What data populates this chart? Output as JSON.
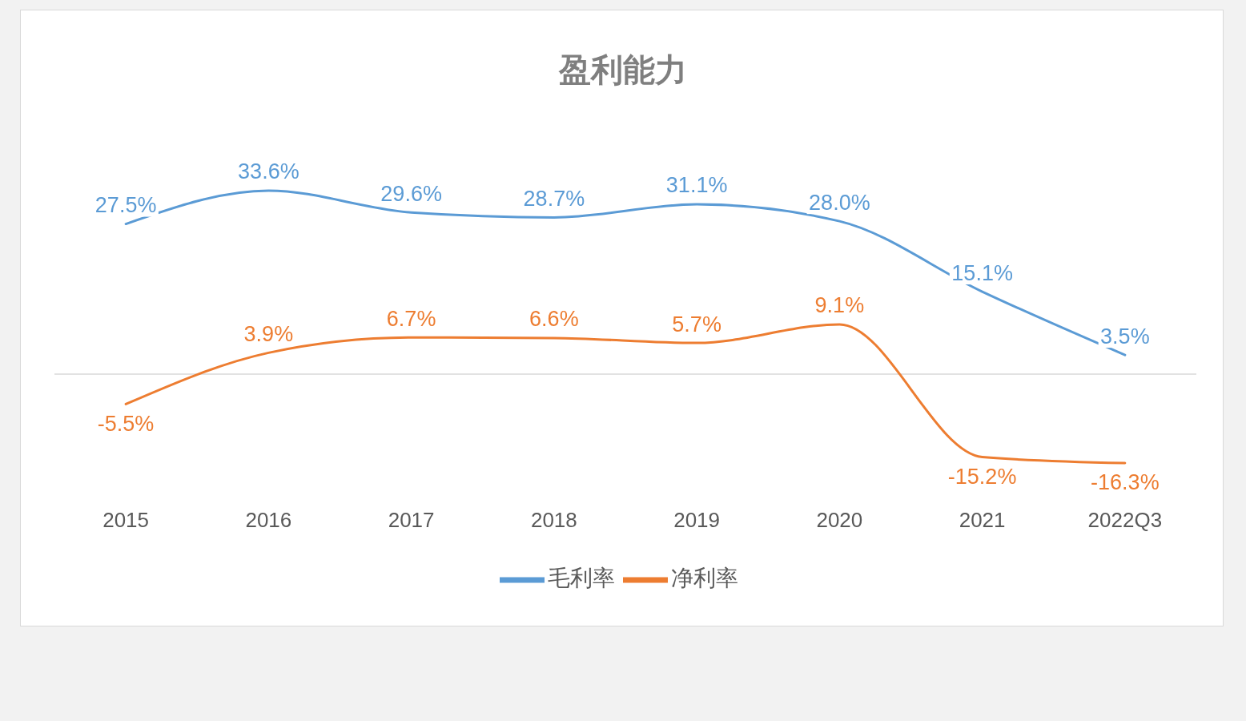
{
  "chart_data": {
    "type": "line",
    "title": "盈利能力",
    "categories": [
      "2015",
      "2016",
      "2017",
      "2018",
      "2019",
      "2020",
      "2021",
      "2022Q3"
    ],
    "series": [
      {
        "name": "毛利率",
        "color": "#5b9bd5",
        "values": [
          27.5,
          33.6,
          29.6,
          28.7,
          31.1,
          28.0,
          15.1,
          3.5
        ],
        "value_labels": [
          "27.5%",
          "33.6%",
          "29.6%",
          "28.7%",
          "31.1%",
          "28.0%",
          "15.1%",
          "3.5%"
        ]
      },
      {
        "name": "净利率",
        "color": "#ed7d31",
        "values": [
          -5.5,
          3.9,
          6.7,
          6.6,
          5.7,
          9.1,
          -15.2,
          -16.3
        ],
        "value_labels": [
          "-5.5%",
          "3.9%",
          "6.7%",
          "6.6%",
          "5.7%",
          "9.1%",
          "-15.2%",
          "-16.3%"
        ]
      }
    ],
    "ref_lines": [
      {
        "axis": "y",
        "value": 0,
        "color": "#d9d9d9"
      }
    ],
    "legend": "bottom",
    "marker": "none",
    "line_style": "solid"
  }
}
